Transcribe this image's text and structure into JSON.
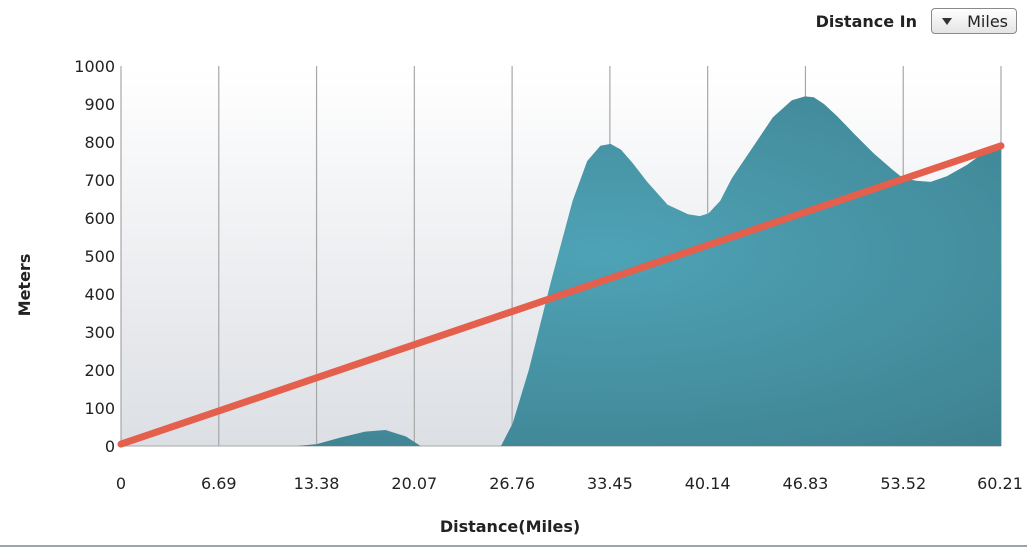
{
  "controls": {
    "distance_in_label": "Distance In",
    "unit_value": "Miles",
    "caret_icon": "caret-down-icon"
  },
  "colors": {
    "area_fill": "#3d7f8e",
    "area_highlight": "#4ea3b6",
    "line": "#e45f4c",
    "grid": "#a7a7a7",
    "plot_bg_top": "#ffffff",
    "plot_bg_bottom": "#dcdfe4"
  },
  "chart_data": {
    "type": "area",
    "xlabel": "Distance(Miles)",
    "ylabel": "Meters",
    "xlim": [
      0,
      60.21
    ],
    "ylim": [
      0,
      1000
    ],
    "x_ticks": [
      "0",
      "6.69",
      "13.38",
      "20.07",
      "26.76",
      "33.45",
      "40.14",
      "46.83",
      "53.52",
      "60.21"
    ],
    "y_ticks": [
      "0",
      "100",
      "200",
      "300",
      "400",
      "500",
      "600",
      "700",
      "800",
      "900",
      "1000"
    ],
    "grid": true,
    "series": [
      {
        "type": "area",
        "x": [
          0,
          12.0,
          13.4,
          15.0,
          16.7,
          18.1,
          19.5,
          20.5,
          26.0,
          26.8,
          27.9,
          29.4,
          30.9,
          31.9,
          32.8,
          33.5,
          34.2,
          35.0,
          36.0,
          37.4,
          38.8,
          39.6,
          40.2,
          41.0,
          41.8,
          43.2,
          44.6,
          45.9,
          46.8,
          47.4,
          48.1,
          49.0,
          50.2,
          51.5,
          52.7,
          53.5,
          54.4,
          55.4,
          56.5,
          57.9,
          59.3,
          60.21
        ],
        "y": [
          0,
          0,
          5,
          22,
          38,
          42,
          25,
          0,
          0,
          60,
          200,
          430,
          645,
          750,
          790,
          795,
          780,
          745,
          695,
          635,
          610,
          605,
          612,
          645,
          705,
          785,
          865,
          910,
          920,
          918,
          900,
          868,
          820,
          770,
          730,
          705,
          698,
          695,
          710,
          740,
          780,
          790
        ]
      },
      {
        "type": "line",
        "x": [
          0,
          60.21
        ],
        "y": [
          5,
          790
        ]
      }
    ]
  }
}
